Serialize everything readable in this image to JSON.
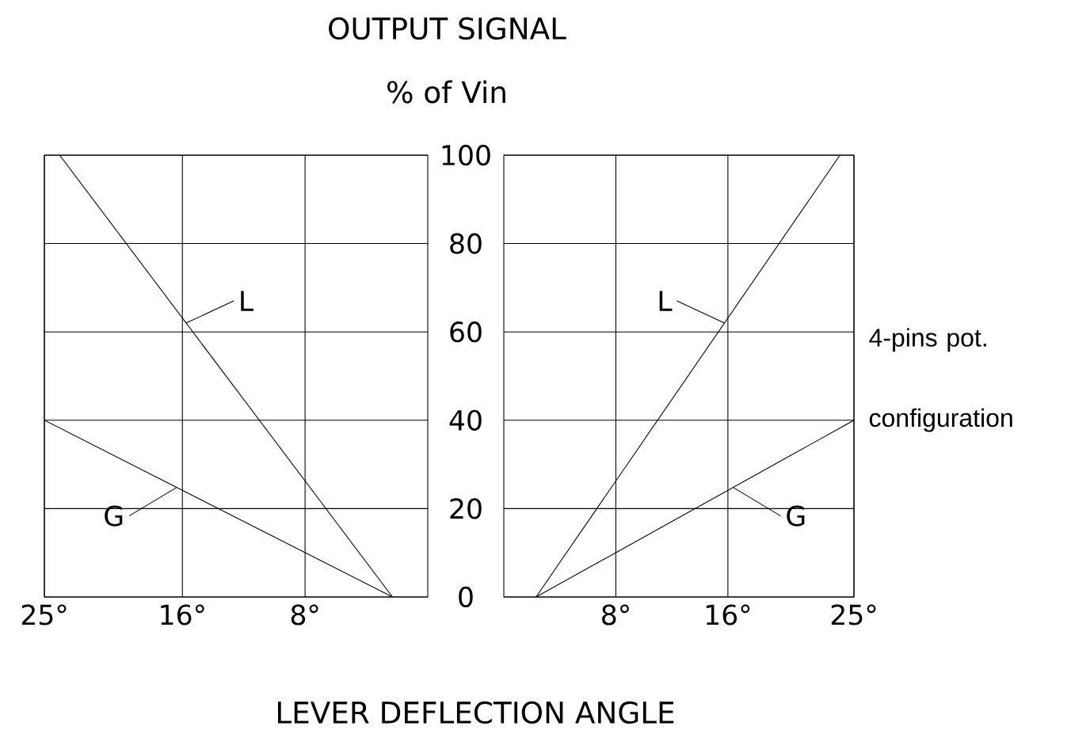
{
  "chart_data": [
    {
      "type": "line",
      "title": "OUTPUT SIGNAL",
      "subtitle": "% of Vin",
      "xlabel": "LEVER DEFLECTION ANGLE",
      "xlim": [
        25,
        0
      ],
      "ylim": [
        0,
        100
      ],
      "xticks": [
        {
          "value": 25,
          "label": "25°"
        },
        {
          "value": 16,
          "label": "16°"
        },
        {
          "value": 8,
          "label": "8°"
        }
      ],
      "yticks": [
        0,
        20,
        40,
        60,
        80,
        100
      ],
      "grid": true,
      "series": [
        {
          "name": "L",
          "color": "#000000",
          "x": [
            24,
            2.3
          ],
          "values": [
            100,
            0
          ]
        },
        {
          "name": "G",
          "color": "#000000",
          "x": [
            25,
            2.3
          ],
          "values": [
            40,
            0
          ]
        }
      ]
    },
    {
      "type": "line",
      "xlim": [
        0,
        25
      ],
      "ylim": [
        0,
        100
      ],
      "xticks": [
        {
          "value": 8,
          "label": "8°"
        },
        {
          "value": 16,
          "label": "16°"
        },
        {
          "value": 25,
          "label": "25°"
        }
      ],
      "yticks": [
        0,
        20,
        40,
        60,
        80,
        100
      ],
      "grid": true,
      "tick_labels": "x",
      "annotations": [
        "4-pins pot. configuration"
      ],
      "series": [
        {
          "name": "L",
          "color": "#000000",
          "x": [
            2.3,
            24
          ],
          "values": [
            0,
            100
          ]
        },
        {
          "name": "G",
          "color": "#000000",
          "x": [
            2.3,
            25
          ],
          "values": [
            0,
            40
          ]
        }
      ]
    }
  ]
}
